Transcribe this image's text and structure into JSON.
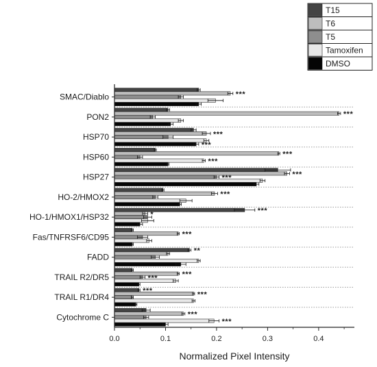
{
  "chart_data": {
    "type": "bar",
    "orientation": "horizontal",
    "title": "",
    "xlabel": "Normalized Pixel Intensity",
    "ylabel": "",
    "xlim": [
      0,
      0.47
    ],
    "x_ticks": [
      "0.0",
      "0.1",
      "0.2",
      "0.3",
      "0.4"
    ],
    "grid": false,
    "category_separators": "dotted",
    "legend_position": "top-right",
    "categories": [
      "SMAC/Diablo",
      "PON2",
      "HSP70",
      "HSP60",
      "HSP27",
      "HO-2/HMOX2",
      "HO-1/HMOX1/HSP32",
      "Fas/TNFRSF6/CD95",
      "FADD",
      "TRAIL R2/DR5",
      "TRAIL R1/DR4",
      "Cytochrome C"
    ],
    "series": [
      {
        "name": "T15",
        "color": "#444444",
        "values": [
          0.165,
          0.105,
          0.155,
          0.08,
          0.32,
          0.095,
          0.255,
          0.035,
          0.147,
          0.035,
          0.048,
          0.062
        ],
        "errors": [
          0.003,
          0.003,
          0.005,
          0.002,
          0.025,
          0.002,
          0.02,
          0.002,
          0.003,
          0.002,
          0.002,
          0.008
        ]
      },
      {
        "name": "T6",
        "color": "#bdbdbd",
        "values": [
          0.227,
          0.44,
          0.18,
          0.322,
          0.338,
          0.196,
          0.06,
          0.125,
          0.105,
          0.125,
          0.155,
          0.135
        ],
        "errors": [
          0.005,
          0.003,
          0.008,
          0.002,
          0.005,
          0.006,
          0.005,
          0.002,
          0.003,
          0.002,
          0.002,
          0.003
        ]
      },
      {
        "name": "T5",
        "color": "#8e8e8e",
        "values": [
          0.13,
          0.075,
          0.105,
          0.05,
          0.2,
          0.08,
          0.065,
          0.055,
          0.08,
          0.055,
          0.035,
          0.062
        ],
        "errors": [
          0.005,
          0.005,
          0.01,
          0.005,
          0.005,
          0.005,
          0.008,
          0.01,
          0.008,
          0.005,
          0.002,
          0.005
        ]
      },
      {
        "name": "Tamoxifen",
        "color": "#e8e8e8",
        "values": [
          0.198,
          0.13,
          0.18,
          0.175,
          0.29,
          0.14,
          0.065,
          0.068,
          0.165,
          0.12,
          0.155,
          0.195
        ],
        "errors": [
          0.015,
          0.005,
          0.005,
          0.003,
          0.005,
          0.012,
          0.012,
          0.005,
          0.003,
          0.005,
          0.003,
          0.01
        ]
      },
      {
        "name": "DMSO",
        "color": "#050505",
        "values": [
          0.165,
          0.11,
          0.16,
          0.105,
          0.278,
          0.128,
          0.05,
          0.035,
          0.13,
          0.048,
          0.042,
          0.1
        ],
        "errors": [
          0.005,
          0.005,
          0.005,
          0.002,
          0.005,
          0.003,
          0.005,
          0.002,
          0.01,
          0.002,
          0.002,
          0.005
        ]
      }
    ],
    "annotations": [
      {
        "category": "SMAC/Diablo",
        "series": "T6",
        "text": "***"
      },
      {
        "category": "PON2",
        "series": "T6",
        "text": "***"
      },
      {
        "category": "HSP70",
        "series": "T6",
        "text": "***"
      },
      {
        "category": "HSP70",
        "series": "DMSO",
        "text": "***"
      },
      {
        "category": "HSP60",
        "series": "T6",
        "text": "***"
      },
      {
        "category": "HSP60",
        "series": "Tamoxifen",
        "text": "***"
      },
      {
        "category": "HSP27",
        "series": "T6",
        "text": "***"
      },
      {
        "category": "HSP27",
        "series": "T5",
        "text": "***"
      },
      {
        "category": "HO-2/HMOX2",
        "series": "T6",
        "text": "***"
      },
      {
        "category": "HO-1/HMOX1/HSP32",
        "series": "T15",
        "text": "***"
      },
      {
        "category": "HO-1/HMOX1/HSP32",
        "series": "T6",
        "text": "*"
      },
      {
        "category": "Fas/TNFRSF6/CD95",
        "series": "T6",
        "text": "***"
      },
      {
        "category": "FADD",
        "series": "T15",
        "text": "**"
      },
      {
        "category": "TRAIL R2/DR5",
        "series": "T6",
        "text": "***"
      },
      {
        "category": "TRAIL R2/DR5",
        "series": "T5",
        "text": "***"
      },
      {
        "category": "TRAIL R1/DR4",
        "series": "T15",
        "text": "***"
      },
      {
        "category": "TRAIL R1/DR4",
        "series": "T6",
        "text": "***"
      },
      {
        "category": "Cytochrome C",
        "series": "T6",
        "text": "***"
      },
      {
        "category": "Cytochrome C",
        "series": "Tamoxifen",
        "text": "***"
      }
    ]
  }
}
